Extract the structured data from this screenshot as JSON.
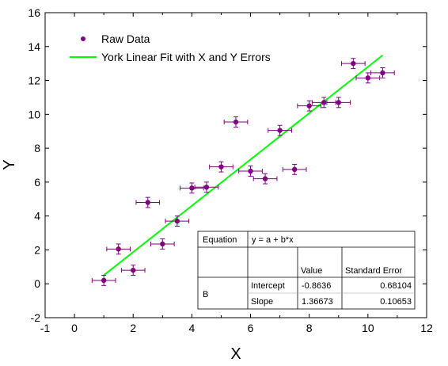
{
  "chart_data": {
    "type": "scatter",
    "xlabel": "X",
    "ylabel": "Y",
    "xlim": [
      -1,
      12
    ],
    "ylim": [
      -2,
      16
    ],
    "xticks": [
      -1,
      0,
      1,
      2,
      3,
      4,
      5,
      6,
      7,
      8,
      9,
      10,
      11,
      12
    ],
    "xtick_labels": [
      "-1",
      "0",
      "2",
      "4",
      "6",
      "8",
      "10",
      "12"
    ],
    "xtick_label_values": [
      -1,
      0,
      2,
      4,
      6,
      8,
      10,
      12
    ],
    "yticks": [
      -2,
      0,
      2,
      4,
      6,
      8,
      10,
      12,
      14,
      16
    ],
    "ytick_labels": [
      "-2",
      "0",
      "2",
      "4",
      "6",
      "8",
      "10",
      "12",
      "14",
      "16"
    ],
    "legend": {
      "position": "top-left",
      "entries": [
        "Raw Data",
        "York Linear Fit with X and Y Errors"
      ]
    },
    "colors": {
      "data": "#800080",
      "fit": "#00ff00"
    },
    "series": [
      {
        "name": "Raw Data",
        "kind": "scatter",
        "x": [
          1.0,
          1.5,
          2.0,
          2.5,
          3.0,
          3.5,
          4.0,
          4.5,
          5.0,
          5.5,
          6.0,
          6.5,
          7.0,
          7.5,
          8.0,
          8.5,
          9.0,
          9.5,
          10.0,
          10.5
        ],
        "y": [
          0.2,
          2.05,
          0.8,
          4.8,
          2.35,
          3.7,
          5.65,
          5.7,
          6.9,
          9.55,
          6.65,
          6.2,
          9.05,
          6.75,
          10.5,
          10.7,
          10.7,
          13.0,
          12.15,
          12.45
        ],
        "x_err": [
          0.4,
          0.4,
          0.4,
          0.4,
          0.4,
          0.4,
          0.4,
          0.4,
          0.4,
          0.4,
          0.4,
          0.4,
          0.4,
          0.4,
          0.4,
          0.4,
          0.4,
          0.4,
          0.4,
          0.4
        ],
        "y_err": [
          0.3,
          0.3,
          0.3,
          0.3,
          0.3,
          0.3,
          0.3,
          0.3,
          0.3,
          0.3,
          0.3,
          0.3,
          0.3,
          0.3,
          0.3,
          0.3,
          0.3,
          0.3,
          0.3,
          0.3
        ]
      },
      {
        "name": "York Linear Fit with X and Y Errors",
        "kind": "line",
        "intercept": -0.8636,
        "slope": 1.36673,
        "x_range": [
          1.0,
          10.5
        ]
      }
    ],
    "fit_table": {
      "equation_label": "Equation",
      "equation": "y = a + b*x",
      "col_headers": [
        "Value",
        "Standard Error"
      ],
      "group_label": "B",
      "rows": [
        {
          "name": "Intercept",
          "value": "-0.8636",
          "error": "0.68104"
        },
        {
          "name": "Slope",
          "value": "1.36673",
          "error": "0.10653"
        }
      ]
    }
  }
}
